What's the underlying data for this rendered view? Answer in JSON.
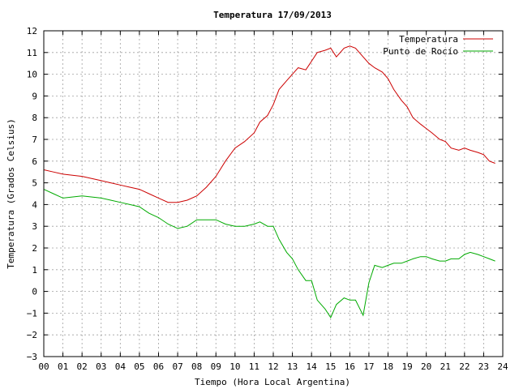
{
  "chart_data": {
    "type": "line",
    "title": "Temperatura 17/09/2013",
    "xlabel": "Tiempo (Hora Local Argentina)",
    "ylabel": "Temperatura (Grados Celsius)",
    "xlim": [
      0,
      24
    ],
    "ylim": [
      -3,
      12
    ],
    "x_ticks": [
      0,
      1,
      2,
      3,
      4,
      5,
      6,
      7,
      8,
      9,
      10,
      11,
      12,
      13,
      14,
      15,
      16,
      17,
      18,
      19,
      20,
      21,
      22,
      23,
      24
    ],
    "x_tick_labels": [
      "00",
      "01",
      "02",
      "03",
      "04",
      "05",
      "06",
      "07",
      "08",
      "09",
      "10",
      "11",
      "12",
      "13",
      "14",
      "15",
      "16",
      "17",
      "18",
      "19",
      "20",
      "21",
      "22",
      "23",
      "24"
    ],
    "y_ticks": [
      -3,
      -2,
      -1,
      0,
      1,
      2,
      3,
      4,
      5,
      6,
      7,
      8,
      9,
      10,
      11,
      12
    ],
    "y_tick_labels": [
      "−3",
      "−2",
      "−1",
      "0",
      "1",
      "2",
      "3",
      "4",
      "5",
      "6",
      "7",
      "8",
      "9",
      "10",
      "11",
      "12"
    ],
    "grid": true,
    "legend_position": "top-right",
    "series": [
      {
        "name": "Temperatura",
        "color": "#cc0000",
        "x": [
          0,
          0.5,
          1,
          2,
          3,
          3.5,
          4,
          4.5,
          5,
          5.5,
          6,
          6.5,
          7,
          7.5,
          8,
          8.5,
          9,
          9.5,
          10,
          10.5,
          11,
          11.3,
          11.7,
          12,
          12.3,
          12.7,
          13,
          13.3,
          13.7,
          14,
          14.3,
          14.7,
          15,
          15.3,
          15.7,
          16,
          16.3,
          16.7,
          17,
          17.3,
          17.7,
          18,
          18.3,
          18.7,
          19,
          19.3,
          19.7,
          20,
          20.3,
          20.7,
          21,
          21.3,
          21.7,
          22,
          22.3,
          22.7,
          23,
          23.3,
          23.6
        ],
        "values": [
          5.6,
          5.5,
          5.4,
          5.3,
          5.1,
          5.0,
          4.9,
          4.8,
          4.7,
          4.5,
          4.3,
          4.1,
          4.1,
          4.2,
          4.4,
          4.8,
          5.3,
          6.0,
          6.6,
          6.9,
          7.3,
          7.8,
          8.1,
          8.6,
          9.3,
          9.7,
          10.0,
          10.3,
          10.2,
          10.6,
          11.0,
          11.1,
          11.2,
          10.8,
          11.2,
          11.3,
          11.2,
          10.8,
          10.5,
          10.3,
          10.1,
          9.8,
          9.3,
          8.8,
          8.5,
          8.0,
          7.7,
          7.5,
          7.3,
          7.0,
          6.9,
          6.6,
          6.5,
          6.6,
          6.5,
          6.4,
          6.3,
          6.0,
          5.9
        ]
      },
      {
        "name": "Punto de Rocío",
        "color": "#00aa00",
        "x": [
          0,
          0.5,
          1,
          2,
          3,
          3.5,
          4,
          4.5,
          5,
          5.5,
          6,
          6.5,
          7,
          7.5,
          8,
          8.5,
          9,
          9.5,
          10,
          10.5,
          11,
          11.3,
          11.7,
          12,
          12.3,
          12.7,
          13,
          13.3,
          13.7,
          14,
          14.3,
          14.7,
          15,
          15.3,
          15.7,
          16,
          16.3,
          16.7,
          17,
          17.3,
          17.7,
          18,
          18.3,
          18.7,
          19,
          19.3,
          19.7,
          20,
          20.3,
          20.7,
          21,
          21.3,
          21.7,
          22,
          22.3,
          22.7,
          23,
          23.3,
          23.6
        ],
        "values": [
          4.7,
          4.5,
          4.3,
          4.4,
          4.3,
          4.2,
          4.1,
          4.0,
          3.9,
          3.6,
          3.4,
          3.1,
          2.9,
          3.0,
          3.3,
          3.3,
          3.3,
          3.1,
          3.0,
          3.0,
          3.1,
          3.2,
          3.0,
          3.0,
          2.4,
          1.8,
          1.5,
          1.0,
          0.5,
          0.5,
          -0.4,
          -0.8,
          -1.2,
          -0.6,
          -0.3,
          -0.4,
          -0.4,
          -1.1,
          0.4,
          1.2,
          1.1,
          1.2,
          1.3,
          1.3,
          1.4,
          1.5,
          1.6,
          1.6,
          1.5,
          1.4,
          1.4,
          1.5,
          1.5,
          1.7,
          1.8,
          1.7,
          1.6,
          1.5,
          1.4
        ]
      }
    ]
  }
}
